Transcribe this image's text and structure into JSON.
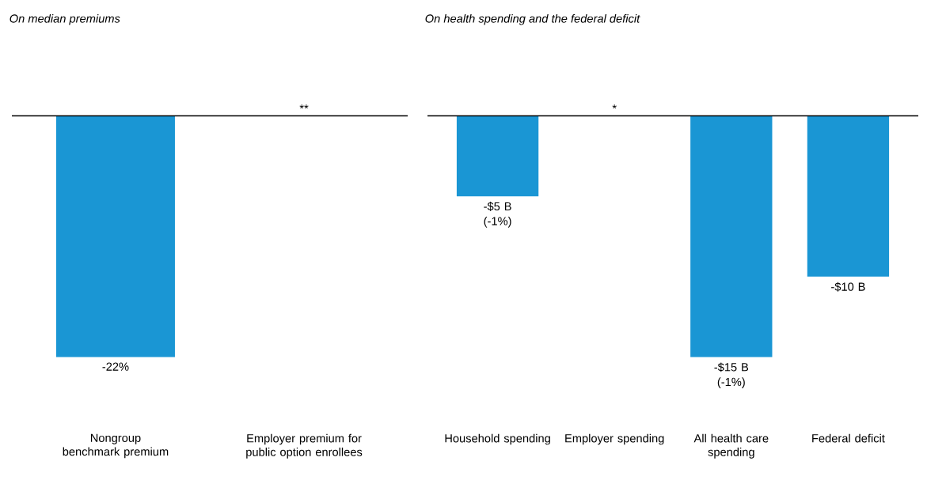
{
  "chart_data": [
    {
      "type": "bar",
      "title": "On median premiums",
      "categories": [
        "Nongroup benchmark premium",
        "Employer premium for public option enrollees"
      ],
      "values": [
        -22,
        0
      ],
      "value_labels": [
        "-22%",
        null
      ],
      "color": "#1a96d4",
      "annotations": [
        "**"
      ]
    },
    {
      "type": "bar",
      "title": "On health spending and the federal deficit",
      "categories": [
        "Household spending",
        "Employer spending",
        "All health care spending",
        "Federal deficit"
      ],
      "values": [
        -5,
        0,
        -15,
        -10
      ],
      "value_labels": [
        "-$5 B (-1%)",
        null,
        "-$15 B (-1%)",
        "-$10 B"
      ],
      "color": "#1a96d4",
      "annotations": [
        "*"
      ]
    }
  ]
}
